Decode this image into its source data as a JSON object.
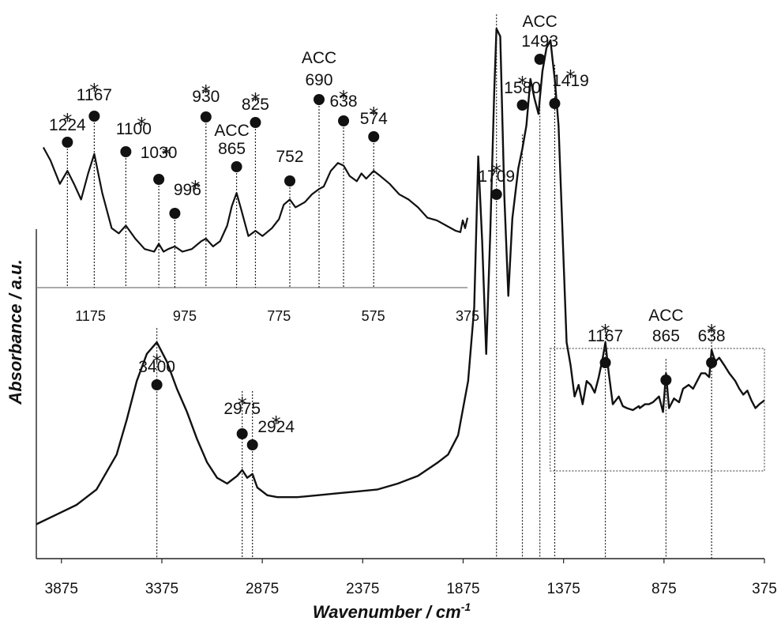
{
  "chart_data": {
    "type": "line",
    "xlabel": "Wavenumber / cm",
    "xlabel_sup": "-1",
    "ylabel": "Absorbance / a.u.",
    "x_reversed": true,
    "xlim": [
      4000,
      375
    ],
    "xticks": [
      3875,
      3375,
      2875,
      2375,
      1875,
      1375,
      875,
      375
    ],
    "series": [
      {
        "x": [
          4000,
          3900,
          3800,
          3700,
          3600,
          3550,
          3500,
          3450,
          3400,
          3350,
          3300,
          3250,
          3200,
          3150,
          3100,
          3050,
          3000,
          2975,
          2950,
          2924,
          2900,
          2850,
          2800,
          2700,
          2600,
          2500,
          2400,
          2300,
          2200,
          2100,
          2000,
          1950,
          1900,
          1850,
          1820,
          1800,
          1780,
          1760,
          1740,
          1720,
          1709,
          1690,
          1670,
          1650,
          1630,
          1600,
          1580,
          1560,
          1540,
          1520,
          1500,
          1493,
          1480,
          1460,
          1440,
          1430,
          1419,
          1400,
          1380,
          1360,
          1340,
          1320,
          1300,
          1280,
          1260,
          1240,
          1220,
          1200,
          1180,
          1167,
          1150,
          1130,
          1100,
          1080,
          1060,
          1030,
          1000,
          996,
          970,
          950,
          930,
          900,
          880,
          865,
          850,
          825,
          800,
          780,
          752,
          730,
          700,
          690,
          670,
          650,
          638,
          620,
          600,
          574,
          550,
          520,
          500,
          480,
          460,
          440,
          420,
          400,
          375
        ],
        "y": [
          0.05,
          0.075,
          0.1,
          0.14,
          0.23,
          0.32,
          0.42,
          0.49,
          0.52,
          0.47,
          0.4,
          0.34,
          0.27,
          0.21,
          0.17,
          0.155,
          0.175,
          0.19,
          0.17,
          0.18,
          0.145,
          0.125,
          0.12,
          0.12,
          0.125,
          0.13,
          0.135,
          0.14,
          0.155,
          0.175,
          0.21,
          0.23,
          0.28,
          0.42,
          0.61,
          1.0,
          0.78,
          0.49,
          0.8,
          1.17,
          1.33,
          1.31,
          0.9,
          0.64,
          0.84,
          0.97,
          1.02,
          1.08,
          1.2,
          1.15,
          1.11,
          1.15,
          1.22,
          1.28,
          1.3,
          1.25,
          1.2,
          1.08,
          0.8,
          0.52,
          0.46,
          0.38,
          0.41,
          0.36,
          0.42,
          0.41,
          0.39,
          0.43,
          0.48,
          0.52,
          0.44,
          0.36,
          0.38,
          0.355,
          0.35,
          0.345,
          0.355,
          0.35,
          0.36,
          0.36,
          0.365,
          0.38,
          0.34,
          0.44,
          0.35,
          0.375,
          0.365,
          0.4,
          0.41,
          0.4,
          0.43,
          0.44,
          0.44,
          0.43,
          0.5,
          0.47,
          0.48,
          0.46,
          0.44,
          0.42,
          0.4,
          0.385,
          0.395,
          0.37,
          0.35,
          0.36,
          0.37
        ]
      }
    ],
    "peaks": [
      {
        "x": 3400,
        "label": "3400",
        "star": true,
        "acc": ""
      },
      {
        "x": 2975,
        "label": "2975",
        "star": true,
        "acc": ""
      },
      {
        "x": 2924,
        "label": "2924",
        "star": true,
        "acc": ""
      },
      {
        "x": 1709,
        "label": "1709",
        "star": true,
        "acc": ""
      },
      {
        "x": 1580,
        "label": "1580",
        "star": true,
        "acc": ""
      },
      {
        "x": 1493,
        "label": "1493",
        "star": false,
        "acc": "ACC"
      },
      {
        "x": 1419,
        "label": "1419",
        "star": true,
        "acc": ""
      },
      {
        "x": 1167,
        "label": "1167",
        "star": true,
        "acc": ""
      },
      {
        "x": 865,
        "label": "865",
        "star": false,
        "acc": "ACC"
      },
      {
        "x": 638,
        "label": "638",
        "star": true,
        "acc": ""
      }
    ],
    "inset": {
      "xlim": [
        1275,
        375
      ],
      "xticks": [
        1175,
        975,
        775,
        575,
        375
      ],
      "x": [
        1275,
        1260,
        1240,
        1224,
        1210,
        1195,
        1180,
        1167,
        1150,
        1130,
        1115,
        1100,
        1080,
        1060,
        1040,
        1030,
        1020,
        1010,
        996,
        980,
        960,
        940,
        930,
        915,
        900,
        885,
        875,
        865,
        855,
        840,
        825,
        810,
        790,
        775,
        765,
        752,
        740,
        720,
        705,
        690,
        680,
        665,
        650,
        638,
        625,
        610,
        600,
        590,
        574,
        560,
        540,
        520,
        500,
        480,
        460,
        440,
        420,
        400,
        390,
        385,
        380,
        375
      ],
      "y": [
        0.9,
        0.8,
        0.62,
        0.72,
        0.62,
        0.5,
        0.7,
        0.85,
        0.55,
        0.28,
        0.24,
        0.3,
        0.2,
        0.12,
        0.1,
        0.16,
        0.1,
        0.12,
        0.14,
        0.1,
        0.12,
        0.18,
        0.2,
        0.14,
        0.18,
        0.3,
        0.45,
        0.55,
        0.42,
        0.22,
        0.26,
        0.22,
        0.28,
        0.35,
        0.46,
        0.5,
        0.44,
        0.48,
        0.54,
        0.58,
        0.6,
        0.72,
        0.78,
        0.76,
        0.68,
        0.64,
        0.7,
        0.66,
        0.72,
        0.68,
        0.62,
        0.54,
        0.5,
        0.44,
        0.36,
        0.34,
        0.3,
        0.26,
        0.25,
        0.34,
        0.28,
        0.36
      ],
      "peaks": [
        {
          "x": 1224,
          "label": "1224",
          "star": true,
          "acc": ""
        },
        {
          "x": 1167,
          "label": "1167",
          "star": true,
          "acc": ""
        },
        {
          "x": 1100,
          "label": "1100",
          "star": true,
          "acc": ""
        },
        {
          "x": 1030,
          "label": "1030",
          "star": true,
          "acc": ""
        },
        {
          "x": 996,
          "label": "996",
          "star": true,
          "acc": ""
        },
        {
          "x": 930,
          "label": "930",
          "star": true,
          "acc": ""
        },
        {
          "x": 865,
          "label": "865",
          "star": false,
          "acc": "ACC"
        },
        {
          "x": 825,
          "label": "825",
          "star": true,
          "acc": ""
        },
        {
          "x": 752,
          "label": "752",
          "star": false,
          "acc": ""
        },
        {
          "x": 690,
          "label": "690",
          "star": false,
          "acc": "ACC"
        },
        {
          "x": 638,
          "label": "638",
          "star": true,
          "acc": ""
        },
        {
          "x": 574,
          "label": "574",
          "star": true,
          "acc": ""
        }
      ]
    },
    "zoom_box": {
      "x_range": [
        1375,
        375
      ]
    }
  }
}
